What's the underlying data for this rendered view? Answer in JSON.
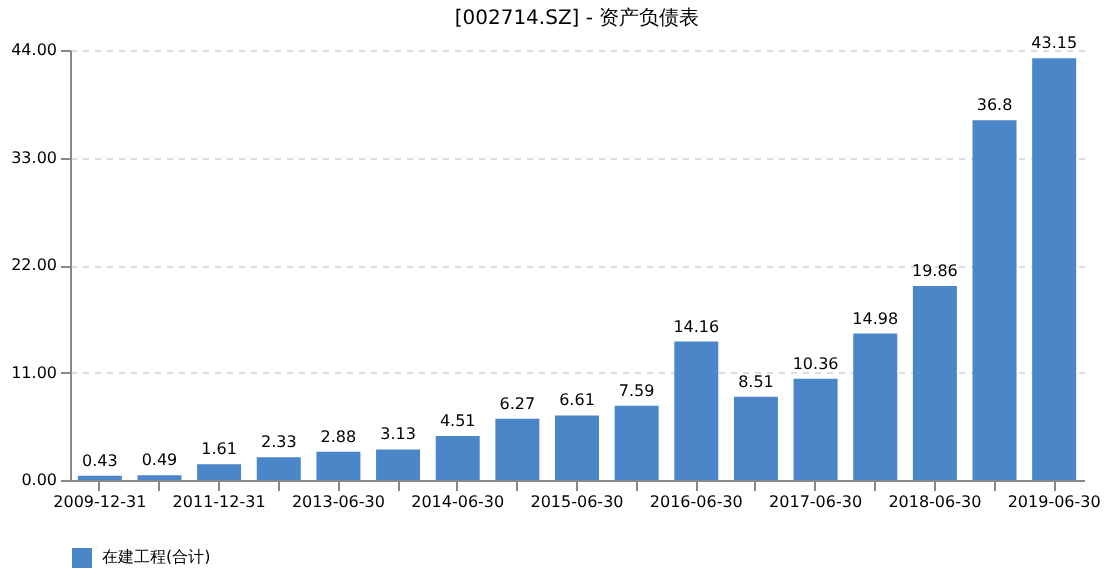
{
  "chart_data": {
    "type": "bar",
    "title": "[002714.SZ] - 资产负债表",
    "categories": [
      "2009-12-31",
      null,
      "2011-12-31",
      null,
      "2013-06-30",
      null,
      "2014-06-30",
      null,
      "2015-06-30",
      null,
      "2016-06-30",
      null,
      "2017-06-30",
      null,
      "2018-06-30",
      null,
      "2019-06-30"
    ],
    "series": [
      {
        "name": "在建工程(合计)",
        "color": "#4a86c8",
        "values": [
          0.43,
          0.49,
          1.61,
          2.33,
          2.88,
          3.13,
          4.51,
          6.27,
          6.61,
          7.59,
          14.16,
          8.51,
          10.36,
          14.98,
          19.86,
          36.8,
          43.15
        ]
      }
    ],
    "ylim": [
      0,
      44
    ],
    "yticks": [
      {
        "value": 0,
        "label": "0.00"
      },
      {
        "value": 11,
        "label": "11.00"
      },
      {
        "value": 22,
        "label": "22.00"
      },
      {
        "value": 33,
        "label": "33.00"
      },
      {
        "value": 44,
        "label": "44.00"
      }
    ],
    "grid": "y",
    "legend": "bottom",
    "data_labels": true
  }
}
